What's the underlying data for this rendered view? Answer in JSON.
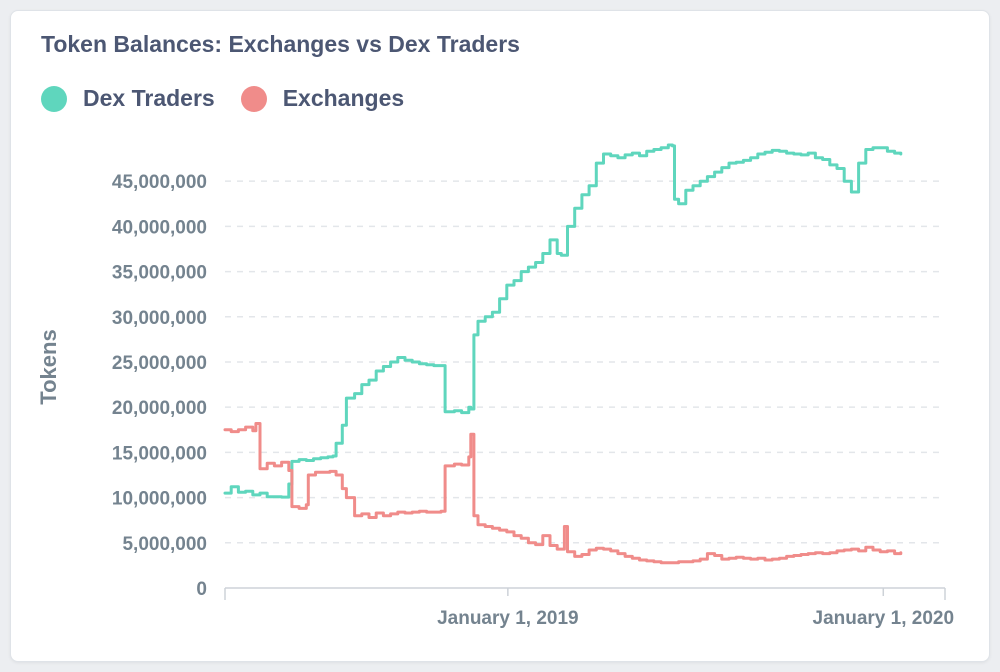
{
  "chart_data": {
    "type": "line",
    "title": "Token Balances: Exchanges vs Dex Traders",
    "ylabel": "Tokens",
    "xlabel": "",
    "ylim": [
      0,
      49000000
    ],
    "yticks": [
      0,
      5000000,
      10000000,
      15000000,
      20000000,
      25000000,
      30000000,
      35000000,
      40000000,
      45000000
    ],
    "ytick_labels": [
      "0",
      "5,000,000",
      "10,000,000",
      "15,000,000",
      "20,000,000",
      "25,000,000",
      "30,000,000",
      "35,000,000",
      "40,000,000",
      "45,000,000"
    ],
    "xlim": [
      "2018-04-01",
      "2020-03-01"
    ],
    "xticks": [
      {
        "date": "2019-01-01",
        "label": "January 1, 2019"
      },
      {
        "date": "2020-01-01",
        "label": "January 1, 2020"
      }
    ],
    "grid": true,
    "legend": "top-left",
    "series": [
      {
        "name": "Dex Traders",
        "color": "#5fd6bd",
        "points": [
          [
            "2018-04-01",
            10500000
          ],
          [
            "2018-04-07",
            11200000
          ],
          [
            "2018-04-14",
            10600000
          ],
          [
            "2018-04-21",
            10700000
          ],
          [
            "2018-04-28",
            10300000
          ],
          [
            "2018-05-05",
            10500000
          ],
          [
            "2018-05-12",
            10100000
          ],
          [
            "2018-05-19",
            10100000
          ],
          [
            "2018-05-26",
            10050000
          ],
          [
            "2018-06-02",
            11500000
          ],
          [
            "2018-06-05",
            14000000
          ],
          [
            "2018-06-12",
            14200000
          ],
          [
            "2018-06-19",
            14100000
          ],
          [
            "2018-06-26",
            14300000
          ],
          [
            "2018-07-03",
            14400000
          ],
          [
            "2018-07-10",
            14500000
          ],
          [
            "2018-07-15",
            14600000
          ],
          [
            "2018-07-18",
            16000000
          ],
          [
            "2018-07-24",
            18000000
          ],
          [
            "2018-07-28",
            21000000
          ],
          [
            "2018-08-05",
            21500000
          ],
          [
            "2018-08-12",
            22500000
          ],
          [
            "2018-08-19",
            23000000
          ],
          [
            "2018-08-26",
            24000000
          ],
          [
            "2018-09-02",
            24500000
          ],
          [
            "2018-09-09",
            25000000
          ],
          [
            "2018-09-16",
            25500000
          ],
          [
            "2018-09-23",
            25200000
          ],
          [
            "2018-09-30",
            25000000
          ],
          [
            "2018-10-07",
            24800000
          ],
          [
            "2018-10-14",
            24700000
          ],
          [
            "2018-10-21",
            24600000
          ],
          [
            "2018-10-28",
            24600000
          ],
          [
            "2018-11-01",
            19500000
          ],
          [
            "2018-11-10",
            19600000
          ],
          [
            "2018-11-17",
            19400000
          ],
          [
            "2018-11-24",
            20000000
          ],
          [
            "2018-11-26",
            19800000
          ],
          [
            "2018-11-29",
            28000000
          ],
          [
            "2018-12-03",
            29500000
          ],
          [
            "2018-12-10",
            30000000
          ],
          [
            "2018-12-17",
            30500000
          ],
          [
            "2018-12-24",
            32000000
          ],
          [
            "2018-12-31",
            33500000
          ],
          [
            "2019-01-07",
            34000000
          ],
          [
            "2019-01-14",
            35000000
          ],
          [
            "2019-01-21",
            35500000
          ],
          [
            "2019-01-28",
            36000000
          ],
          [
            "2019-02-04",
            37000000
          ],
          [
            "2019-02-11",
            38500000
          ],
          [
            "2019-02-18",
            37000000
          ],
          [
            "2019-02-22",
            36800000
          ],
          [
            "2019-02-28",
            40000000
          ],
          [
            "2019-03-07",
            42000000
          ],
          [
            "2019-03-14",
            43500000
          ],
          [
            "2019-03-21",
            44500000
          ],
          [
            "2019-03-28",
            47000000
          ],
          [
            "2019-04-04",
            48000000
          ],
          [
            "2019-04-11",
            47800000
          ],
          [
            "2019-04-18",
            47600000
          ],
          [
            "2019-04-25",
            47900000
          ],
          [
            "2019-05-02",
            48100000
          ],
          [
            "2019-05-09",
            47800000
          ],
          [
            "2019-05-16",
            48300000
          ],
          [
            "2019-05-23",
            48500000
          ],
          [
            "2019-05-30",
            48700000
          ],
          [
            "2019-06-06",
            49000000
          ],
          [
            "2019-06-10",
            48900000
          ],
          [
            "2019-06-12",
            43000000
          ],
          [
            "2019-06-16",
            42500000
          ],
          [
            "2019-06-23",
            44000000
          ],
          [
            "2019-06-30",
            44500000
          ],
          [
            "2019-07-07",
            45000000
          ],
          [
            "2019-07-14",
            45500000
          ],
          [
            "2019-07-21",
            46000000
          ],
          [
            "2019-07-28",
            46500000
          ],
          [
            "2019-08-04",
            47000000
          ],
          [
            "2019-08-11",
            47100000
          ],
          [
            "2019-08-18",
            47300000
          ],
          [
            "2019-08-25",
            47600000
          ],
          [
            "2019-09-01",
            48000000
          ],
          [
            "2019-09-08",
            48200000
          ],
          [
            "2019-09-15",
            48400000
          ],
          [
            "2019-09-22",
            48300000
          ],
          [
            "2019-09-29",
            48100000
          ],
          [
            "2019-10-06",
            48000000
          ],
          [
            "2019-10-13",
            47900000
          ],
          [
            "2019-10-20",
            48100000
          ],
          [
            "2019-10-27",
            47600000
          ],
          [
            "2019-11-03",
            47400000
          ],
          [
            "2019-11-10",
            46800000
          ],
          [
            "2019-11-17",
            46400000
          ],
          [
            "2019-11-24",
            45000000
          ],
          [
            "2019-12-01",
            43800000
          ],
          [
            "2019-12-08",
            47000000
          ],
          [
            "2019-12-15",
            48500000
          ],
          [
            "2019-12-22",
            48700000
          ],
          [
            "2019-12-29",
            48700000
          ],
          [
            "2020-01-05",
            48300000
          ],
          [
            "2020-01-12",
            48100000
          ],
          [
            "2020-01-18",
            48000000
          ]
        ]
      },
      {
        "name": "Exchanges",
        "color": "#f08c8a",
        "points": [
          [
            "2018-04-01",
            17500000
          ],
          [
            "2018-04-07",
            17300000
          ],
          [
            "2018-04-14",
            17500000
          ],
          [
            "2018-04-21",
            17800000
          ],
          [
            "2018-04-28",
            17400000
          ],
          [
            "2018-05-01",
            18200000
          ],
          [
            "2018-05-05",
            13200000
          ],
          [
            "2018-05-12",
            13800000
          ],
          [
            "2018-05-19",
            13500000
          ],
          [
            "2018-05-26",
            13900000
          ],
          [
            "2018-06-02",
            13000000
          ],
          [
            "2018-06-05",
            9000000
          ],
          [
            "2018-06-12",
            8800000
          ],
          [
            "2018-06-19",
            9200000
          ],
          [
            "2018-06-21",
            12500000
          ],
          [
            "2018-06-28",
            12800000
          ],
          [
            "2018-07-05",
            12800000
          ],
          [
            "2018-07-12",
            12900000
          ],
          [
            "2018-07-18",
            12500000
          ],
          [
            "2018-07-24",
            11000000
          ],
          [
            "2018-07-28",
            10000000
          ],
          [
            "2018-08-05",
            8000000
          ],
          [
            "2018-08-12",
            8200000
          ],
          [
            "2018-08-19",
            7800000
          ],
          [
            "2018-08-26",
            8300000
          ],
          [
            "2018-09-02",
            8000000
          ],
          [
            "2018-09-09",
            8200000
          ],
          [
            "2018-09-16",
            8400000
          ],
          [
            "2018-09-23",
            8300000
          ],
          [
            "2018-09-30",
            8400000
          ],
          [
            "2018-10-07",
            8500000
          ],
          [
            "2018-10-14",
            8400000
          ],
          [
            "2018-10-21",
            8400000
          ],
          [
            "2018-10-28",
            8500000
          ],
          [
            "2018-11-01",
            13500000
          ],
          [
            "2018-11-10",
            13700000
          ],
          [
            "2018-11-17",
            13600000
          ],
          [
            "2018-11-24",
            14500000
          ],
          [
            "2018-11-26",
            17000000
          ],
          [
            "2018-11-29",
            8000000
          ],
          [
            "2018-12-03",
            7000000
          ],
          [
            "2018-12-10",
            6800000
          ],
          [
            "2018-12-17",
            6600000
          ],
          [
            "2018-12-24",
            6400000
          ],
          [
            "2018-12-31",
            6200000
          ],
          [
            "2019-01-07",
            5800000
          ],
          [
            "2019-01-14",
            5500000
          ],
          [
            "2019-01-21",
            5000000
          ],
          [
            "2019-01-28",
            4800000
          ],
          [
            "2019-02-04",
            5800000
          ],
          [
            "2019-02-11",
            4700000
          ],
          [
            "2019-02-18",
            4300000
          ],
          [
            "2019-02-25",
            6800000
          ],
          [
            "2019-02-28",
            4000000
          ],
          [
            "2019-03-07",
            3500000
          ],
          [
            "2019-03-14",
            3700000
          ],
          [
            "2019-03-21",
            4200000
          ],
          [
            "2019-03-28",
            4400000
          ],
          [
            "2019-04-04",
            4300000
          ],
          [
            "2019-04-11",
            4100000
          ],
          [
            "2019-04-18",
            3800000
          ],
          [
            "2019-04-25",
            3500000
          ],
          [
            "2019-05-02",
            3300000
          ],
          [
            "2019-05-09",
            3100000
          ],
          [
            "2019-05-16",
            3000000
          ],
          [
            "2019-05-23",
            2900000
          ],
          [
            "2019-05-30",
            2800000
          ],
          [
            "2019-06-06",
            2800000
          ],
          [
            "2019-06-16",
            2900000
          ],
          [
            "2019-06-23",
            2900000
          ],
          [
            "2019-06-30",
            3000000
          ],
          [
            "2019-07-07",
            3200000
          ],
          [
            "2019-07-14",
            3800000
          ],
          [
            "2019-07-21",
            3600000
          ],
          [
            "2019-07-28",
            3200000
          ],
          [
            "2019-08-04",
            3300000
          ],
          [
            "2019-08-11",
            3400000
          ],
          [
            "2019-08-18",
            3300000
          ],
          [
            "2019-08-25",
            3200000
          ],
          [
            "2019-09-01",
            3300000
          ],
          [
            "2019-09-08",
            3100000
          ],
          [
            "2019-09-15",
            3200000
          ],
          [
            "2019-09-22",
            3300000
          ],
          [
            "2019-09-29",
            3500000
          ],
          [
            "2019-10-06",
            3600000
          ],
          [
            "2019-10-13",
            3700000
          ],
          [
            "2019-10-20",
            3800000
          ],
          [
            "2019-10-27",
            3900000
          ],
          [
            "2019-11-03",
            3800000
          ],
          [
            "2019-11-10",
            3900000
          ],
          [
            "2019-11-17",
            4100000
          ],
          [
            "2019-11-24",
            4200000
          ],
          [
            "2019-12-01",
            4300000
          ],
          [
            "2019-12-08",
            4100000
          ],
          [
            "2019-12-15",
            4500000
          ],
          [
            "2019-12-22",
            4200000
          ],
          [
            "2019-12-29",
            4000000
          ],
          [
            "2020-01-05",
            4100000
          ],
          [
            "2020-01-12",
            3800000
          ],
          [
            "2020-01-18",
            3900000
          ]
        ]
      }
    ]
  }
}
